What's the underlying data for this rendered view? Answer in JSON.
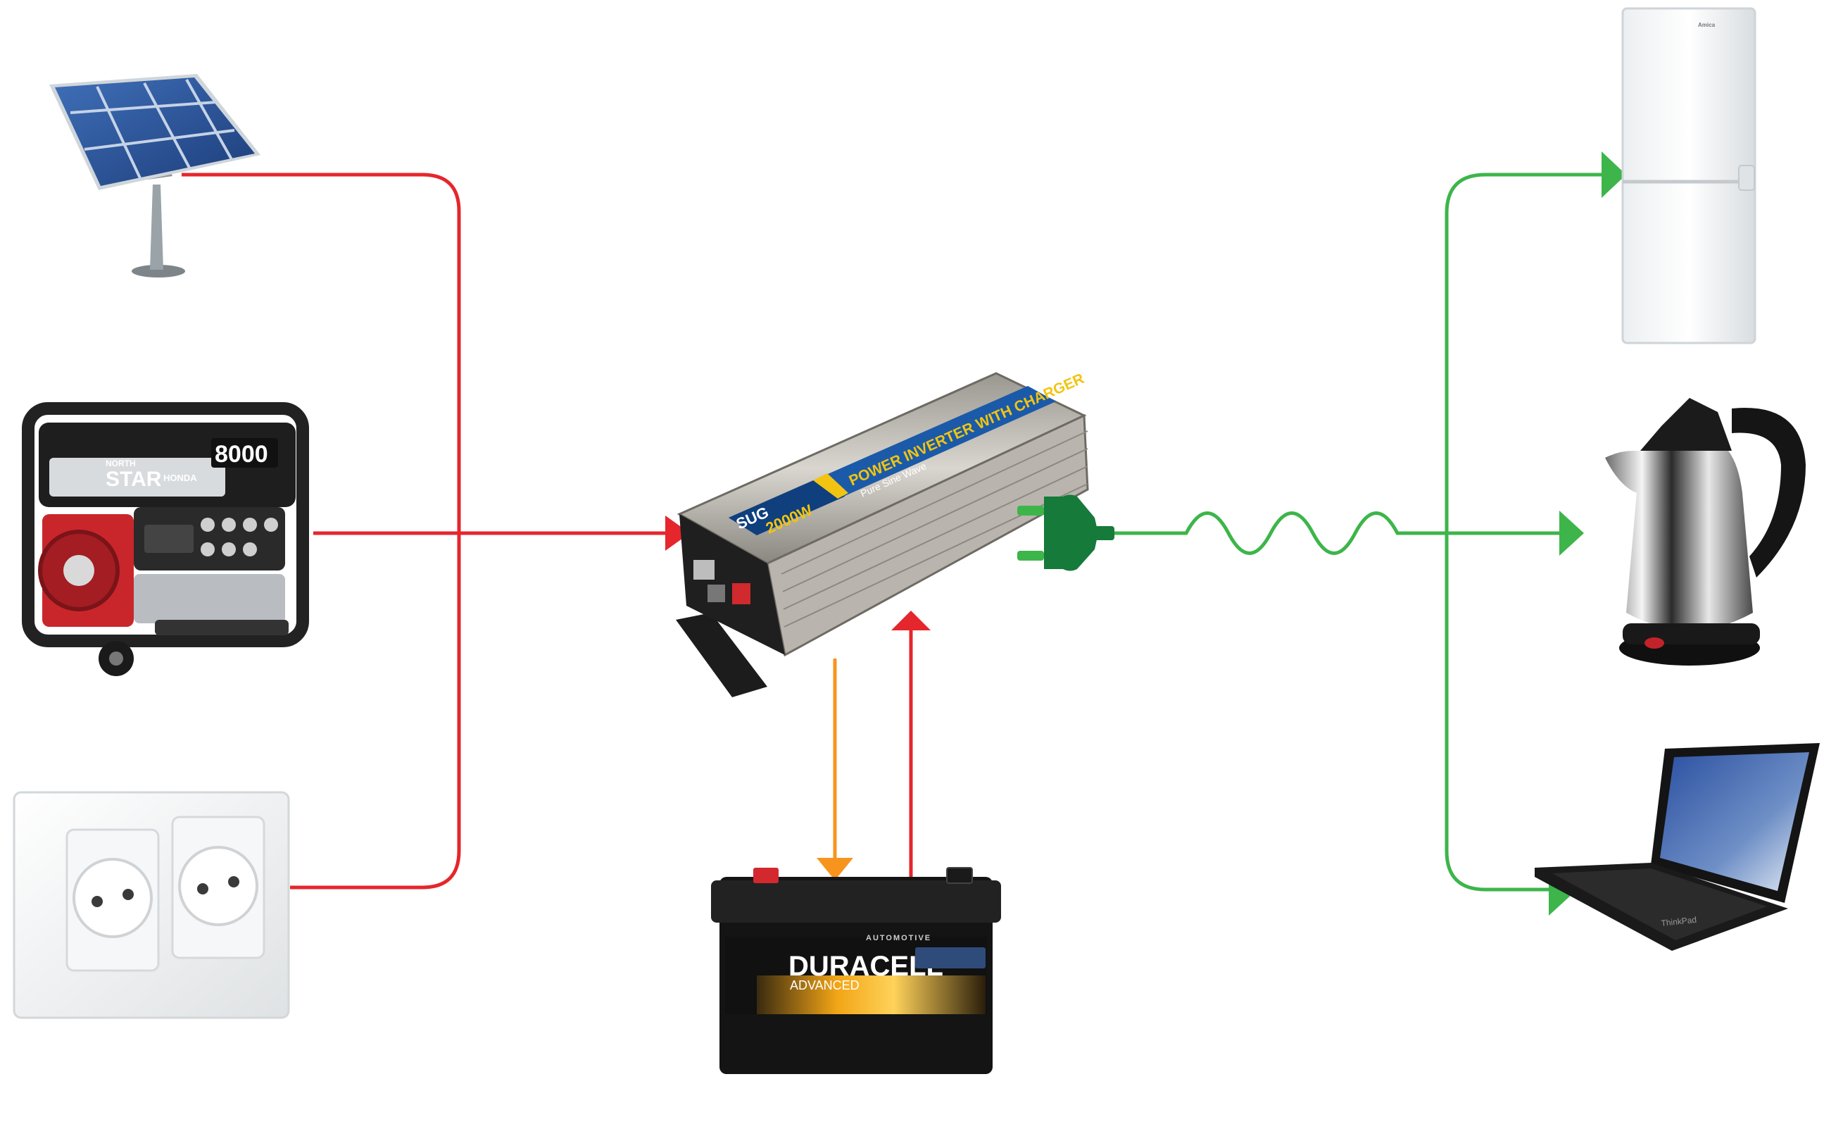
{
  "colors": {
    "input_line": "#e5262c",
    "output_line": "#3db54a",
    "charge_line": "#f7941d",
    "plug": "#157a3a",
    "background": "#ffffff"
  },
  "sources": [
    {
      "name": "solar-panel",
      "icon": "solar-panel-icon"
    },
    {
      "name": "generator",
      "icon": "generator-icon"
    },
    {
      "name": "wall-socket",
      "icon": "wall-socket-icon"
    }
  ],
  "generator": {
    "brand_top": "NORTH",
    "brand": "STAR",
    "model": "8000",
    "engine": "HONDA"
  },
  "inverter": {
    "brand": "SUG",
    "rating": "2000W",
    "title": "POWER INVERTER WITH CHARGER",
    "subtitle": "Pure Sine Wave"
  },
  "battery": {
    "brand": "DURACELL",
    "line": "ADVANCED",
    "type": "AUTOMOTIVE"
  },
  "fridge": {
    "brand": "Amica"
  },
  "laptop": {
    "brand": "ThinkPad"
  },
  "loads": [
    {
      "name": "refrigerator",
      "icon": "refrigerator-icon"
    },
    {
      "name": "kettle",
      "icon": "kettle-icon"
    },
    {
      "name": "laptop",
      "icon": "laptop-icon"
    }
  ]
}
